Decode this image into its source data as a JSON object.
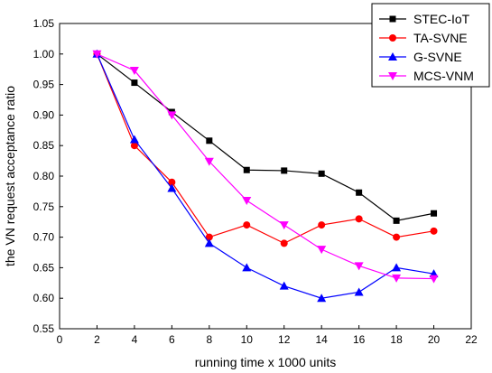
{
  "chart_data": {
    "type": "line",
    "xlabel": "running time x 1000 units",
    "ylabel": "the VN request acceptance ratio",
    "xlim": [
      0,
      22
    ],
    "ylim": [
      0.55,
      1.05
    ],
    "xticks": [
      0,
      2,
      4,
      6,
      8,
      10,
      12,
      14,
      16,
      18,
      20,
      22
    ],
    "yticks": [
      0.55,
      0.6,
      0.65,
      0.7,
      0.75,
      0.8,
      0.85,
      0.9,
      0.95,
      1.0,
      1.05
    ],
    "grid": false,
    "legend_position": "top-right",
    "x": [
      2,
      4,
      6,
      8,
      10,
      12,
      14,
      16,
      18,
      20
    ],
    "series": [
      {
        "name": "STEC-IoT",
        "color": "#000000",
        "marker": "square",
        "values": [
          1.0,
          0.953,
          0.905,
          0.858,
          0.81,
          0.809,
          0.804,
          0.773,
          0.727,
          0.739
        ]
      },
      {
        "name": "TA-SVNE",
        "color": "#ff0000",
        "marker": "circle",
        "values": [
          1.0,
          0.85,
          0.79,
          0.7,
          0.72,
          0.69,
          0.72,
          0.73,
          0.7,
          0.71
        ]
      },
      {
        "name": "G-SVNE",
        "color": "#0000ff",
        "marker": "triangle-up",
        "values": [
          1.0,
          0.86,
          0.78,
          0.69,
          0.65,
          0.62,
          0.6,
          0.61,
          0.65,
          0.64
        ]
      },
      {
        "name": "MCS-VNM",
        "color": "#ff00ff",
        "marker": "triangle-down",
        "values": [
          1.0,
          0.973,
          0.9,
          0.824,
          0.76,
          0.72,
          0.68,
          0.653,
          0.633,
          0.632
        ]
      }
    ]
  }
}
